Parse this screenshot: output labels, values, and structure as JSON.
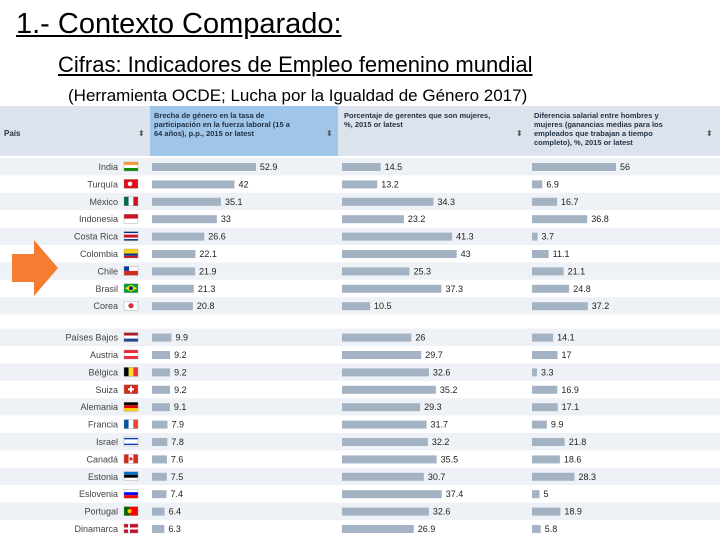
{
  "slide": {
    "title": "1.- Contexto Comparado:",
    "subtitle": "Cifras: Indicadores de Empleo femenino mundial",
    "source": "(Herramienta OCDE; Lucha por la Igualdad de Género 2017)"
  },
  "colors": {
    "bar": "#a3b3c4",
    "header_bg": "#dce3ec",
    "header_selected": "#9fc5e8",
    "row_alt": "#eef1f5",
    "arrow": "#f47d32"
  },
  "chart_data": {
    "type": "table",
    "header": {
      "country_label": "País",
      "columns": [
        "Brecha de género en la tasa de participación en la fuerza laboral (15 a 64 años), p.p., 2015 or latest",
        "Porcentaje de gerentes que son mujeres, %, 2015 or latest",
        "Diferencia salarial entre hombres y mujeres (ganancias medias para los empleados que trabajan a tiempo completo), %, 2015 or latest"
      ]
    },
    "series": [
      {
        "name": "Brecha de género en la tasa de participación en la fuerza laboral (15 a 64 años), p.p., 2015 or latest",
        "max": 56
      },
      {
        "name": "Porcentaje de gerentes que son mujeres, %, 2015 or latest",
        "max": 45
      },
      {
        "name": "Diferencia salarial entre hombres y mujeres (ganancias medias para los empleados que trabajan a tiempo completo), %, 2015 or latest",
        "max": 60
      }
    ],
    "groups": [
      {
        "rows": [
          {
            "country": "India",
            "flag": "india",
            "values": [
              52.9,
              14.5,
              56
            ]
          },
          {
            "country": "Turquía",
            "flag": "turkey",
            "values": [
              42,
              13.2,
              6.9
            ]
          },
          {
            "country": "México",
            "flag": "mexico",
            "values": [
              35.1,
              34.3,
              16.7
            ]
          },
          {
            "country": "Indonesia",
            "flag": "indonesia",
            "values": [
              33,
              23.2,
              36.8
            ]
          },
          {
            "country": "Costa Rica",
            "flag": "costarica",
            "values": [
              26.6,
              41.3,
              3.7
            ]
          },
          {
            "country": "Colombia",
            "flag": "colombia",
            "values": [
              22.1,
              43,
              11.1
            ]
          },
          {
            "country": "Chile",
            "flag": "chile",
            "values": [
              21.9,
              25.3,
              21.1
            ]
          },
          {
            "country": "Brasil",
            "flag": "brazil",
            "values": [
              21.3,
              37.3,
              24.8
            ]
          },
          {
            "country": "Corea",
            "flag": "korea",
            "values": [
              20.8,
              10.5,
              37.2
            ]
          }
        ]
      },
      {
        "rows": [
          {
            "country": "Países Bajos",
            "flag": "netherlands",
            "values": [
              9.9,
              26,
              14.1
            ]
          },
          {
            "country": "Austria",
            "flag": "austria",
            "values": [
              9.2,
              29.7,
              17
            ]
          },
          {
            "country": "Bélgica",
            "flag": "belgium",
            "values": [
              9.2,
              32.6,
              3.3
            ]
          },
          {
            "country": "Suiza",
            "flag": "switzerland",
            "values": [
              9.2,
              35.2,
              16.9
            ]
          },
          {
            "country": "Alemania",
            "flag": "germany",
            "values": [
              9.1,
              29.3,
              17.1
            ]
          },
          {
            "country": "Francia",
            "flag": "france",
            "values": [
              7.9,
              31.7,
              9.9
            ]
          },
          {
            "country": "Israel",
            "flag": "israel",
            "values": [
              7.8,
              32.2,
              21.8
            ]
          },
          {
            "country": "Canadá",
            "flag": "canada",
            "values": [
              7.6,
              35.5,
              18.6
            ]
          },
          {
            "country": "Estonia",
            "flag": "estonia",
            "values": [
              7.5,
              30.7,
              28.3
            ]
          },
          {
            "country": "Eslovenia",
            "flag": "slovenia",
            "values": [
              7.4,
              37.4,
              5
            ]
          },
          {
            "country": "Portugal",
            "flag": "portugal",
            "values": [
              6.4,
              32.6,
              18.9
            ]
          },
          {
            "country": "Dinamarca",
            "flag": "denmark",
            "values": [
              6.3,
              26.9,
              5.8
            ]
          }
        ]
      }
    ]
  }
}
